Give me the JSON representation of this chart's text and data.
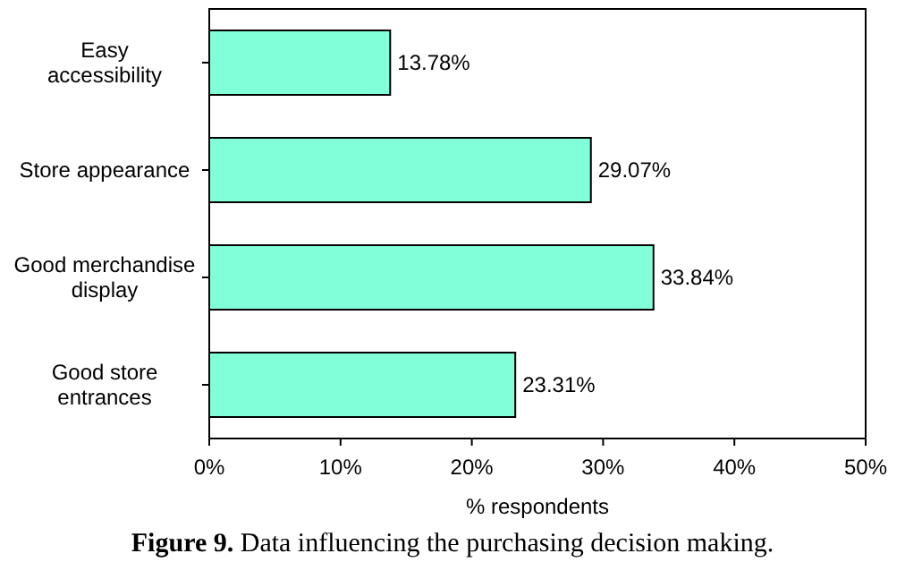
{
  "chart_data": {
    "type": "bar",
    "orientation": "horizontal",
    "xlabel": "% respondents",
    "categories": [
      "Easy accessibility",
      "Store appearance",
      "Good merchandise display",
      "Good store entrances"
    ],
    "values": [
      13.78,
      29.07,
      33.84,
      23.31
    ],
    "color": "#80ffd9",
    "value_labels": [
      "13.78%",
      "29.07%",
      "33.84%",
      "23.31%"
    ],
    "xlim": [
      0,
      50
    ],
    "xticks": [
      {
        "value": 0,
        "label": "0%"
      },
      {
        "value": 10,
        "label": "10%"
      },
      {
        "value": 20,
        "label": "20%"
      },
      {
        "value": 30,
        "label": "30%"
      },
      {
        "value": 40,
        "label": "40%"
      },
      {
        "value": 50,
        "label": "50%"
      }
    ],
    "grid": false,
    "annotations": [
      "Figure 9. Data influencing the purchasing decision making."
    ]
  }
}
